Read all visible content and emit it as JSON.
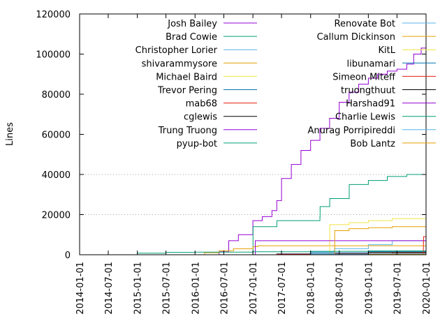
{
  "chart_data": {
    "type": "line",
    "xlabel": "",
    "ylabel": "Lines",
    "ylim": [
      0,
      120000
    ],
    "xlim": [
      "2014-01-01",
      "2020-01-01"
    ],
    "yticks": [
      0,
      20000,
      40000,
      60000,
      80000,
      100000,
      120000
    ],
    "ytick_labels": [
      "0",
      "20000",
      "40000",
      "60000",
      "80000",
      "100000",
      "120000"
    ],
    "xticks": [
      "2014-01-01",
      "2014-07-01",
      "2015-01-01",
      "2015-07-01",
      "2016-01-01",
      "2016-07-01",
      "2017-01-01",
      "2017-07-01",
      "2018-01-01",
      "2018-07-01",
      "2019-01-01",
      "2019-07-01",
      "2020-01-01"
    ],
    "grid": "horizontal dotted at 20000, 40000",
    "legend_placement": "top, two columns",
    "series": [
      {
        "name": "Josh Bailey",
        "color": "#9400d3",
        "x": [
          "2014-01-01",
          "2016-04-01",
          "2016-06-01",
          "2016-08-01",
          "2016-10-01",
          "2017-01-01",
          "2017-03-01",
          "2017-05-01",
          "2017-06-01",
          "2017-07-01",
          "2017-09-01",
          "2017-11-01",
          "2018-01-01",
          "2018-03-01",
          "2018-05-01",
          "2018-07-01",
          "2018-09-01",
          "2018-11-01",
          "2019-01-01",
          "2019-03-01",
          "2019-05-01",
          "2019-07-01",
          "2019-09-01",
          "2019-10-15",
          "2019-12-01",
          "2020-01-01"
        ],
        "values": [
          0,
          0,
          1500,
          7000,
          10000,
          17000,
          19000,
          22000,
          27000,
          38000,
          45000,
          52000,
          57000,
          63000,
          68000,
          76000,
          81000,
          85000,
          88000,
          90000,
          91500,
          92500,
          95000,
          100000,
          103000,
          104000
        ]
      },
      {
        "name": "Brad Cowie",
        "color": "#009e73",
        "x": [
          "2014-01-01",
          "2016-06-01",
          "2017-01-01",
          "2017-01-02",
          "2017-06-01",
          "2017-06-02",
          "2018-03-01",
          "2018-03-02",
          "2018-05-01",
          "2018-05-02",
          "2018-09-01",
          "2018-09-02",
          "2019-01-01",
          "2019-05-01",
          "2019-09-01",
          "2020-01-01"
        ],
        "values": [
          0,
          0,
          1000,
          14000,
          14000,
          17000,
          19000,
          24000,
          24000,
          28000,
          28000,
          35000,
          37000,
          39000,
          40000,
          42000
        ]
      },
      {
        "name": "Christopher Lorier",
        "color": "#56b4e9",
        "x": [
          "2014-01-01",
          "2017-06-01",
          "2018-01-01",
          "2018-06-01",
          "2019-01-01",
          "2019-06-01",
          "2020-01-01"
        ],
        "values": [
          0,
          0,
          1500,
          3000,
          5000,
          7000,
          8000
        ]
      },
      {
        "name": "shivarammysore",
        "color": "#e69f00",
        "x": [
          "2014-01-01",
          "2016-01-01",
          "2016-03-01",
          "2016-06-01",
          "2016-09-01",
          "2017-01-01",
          "2017-02-01",
          "2020-01-01"
        ],
        "values": [
          0,
          0,
          1000,
          2000,
          3000,
          4000,
          4500,
          4500
        ]
      },
      {
        "name": "Michael Baird",
        "color": "#f0e442",
        "x": [
          "2014-01-01",
          "2018-05-01",
          "2018-05-02",
          "2018-09-01",
          "2019-01-01",
          "2019-06-01",
          "2020-01-01"
        ],
        "values": [
          0,
          0,
          15000,
          16000,
          17000,
          18000,
          18500
        ]
      },
      {
        "name": "Trevor Pering",
        "color": "#0072b2",
        "x": [
          "2014-01-01",
          "2016-09-01",
          "2017-06-01",
          "2018-01-01",
          "2019-01-01",
          "2020-01-01"
        ],
        "values": [
          0,
          0,
          500,
          1000,
          1500,
          2000
        ]
      },
      {
        "name": "mab68",
        "color": "#e51e10",
        "x": [
          "2014-01-01",
          "2016-06-01",
          "2017-06-01",
          "2018-06-01",
          "2019-06-01",
          "2020-01-01"
        ],
        "values": [
          0,
          0,
          300,
          600,
          1000,
          1500
        ]
      },
      {
        "name": "cglewis",
        "color": "#000000",
        "x": [
          "2014-01-01",
          "2017-01-01",
          "2018-01-01",
          "2019-01-01",
          "2020-01-01"
        ],
        "values": [
          0,
          0,
          400,
          1200,
          1800
        ]
      },
      {
        "name": "Trung Truong",
        "color": "#9400d3",
        "x": [
          "2014-01-01",
          "2017-01-15",
          "2017-01-16",
          "2020-01-01"
        ],
        "values": [
          0,
          0,
          7000,
          7500
        ]
      },
      {
        "name": "pyup-bot",
        "color": "#009e73",
        "x": [
          "2014-01-01",
          "2017-01-01",
          "2018-01-01",
          "2019-01-01",
          "2020-01-01"
        ],
        "values": [
          0,
          0,
          200,
          400,
          600
        ]
      },
      {
        "name": "Renovate Bot",
        "color": "#56b4e9",
        "x": [
          "2014-01-01",
          "2019-01-01",
          "2020-01-01"
        ],
        "values": [
          0,
          0,
          300
        ]
      },
      {
        "name": "Callum Dickinson",
        "color": "#e69f00",
        "x": [
          "2014-01-01",
          "2018-06-01",
          "2018-06-02",
          "2018-09-01",
          "2019-01-01",
          "2019-06-01",
          "2020-01-01"
        ],
        "values": [
          0,
          0,
          12000,
          13000,
          13500,
          14000,
          14500
        ]
      },
      {
        "name": "KitL",
        "color": "#f0e442",
        "x": [
          "2014-01-01",
          "2019-01-01",
          "2020-01-01"
        ],
        "values": [
          0,
          0,
          300
        ]
      },
      {
        "name": "libunamari",
        "color": "#0072b2",
        "x": [
          "2014-01-01",
          "2019-06-01",
          "2020-01-01"
        ],
        "values": [
          0,
          0,
          200
        ]
      },
      {
        "name": "Simeon Miteff",
        "color": "#e51e10",
        "x": [
          "2014-01-01",
          "2019-10-01",
          "2019-12-15",
          "2019-12-16",
          "2020-01-01"
        ],
        "values": [
          0,
          0,
          6000,
          9000,
          10500
        ]
      },
      {
        "name": "truongthuut",
        "color": "#000000",
        "x": [
          "2014-01-01",
          "2018-06-01",
          "2019-01-01",
          "2020-01-01"
        ],
        "values": [
          0,
          0,
          500,
          700
        ]
      },
      {
        "name": "Harshad91",
        "color": "#9400d3",
        "x": [
          "2014-01-01",
          "2019-01-01",
          "2020-01-01"
        ],
        "values": [
          0,
          0,
          200
        ]
      },
      {
        "name": "Charlie Lewis",
        "color": "#009e73",
        "x": [
          "2014-01-01",
          "2014-04-01",
          "2015-01-01",
          "2015-07-01",
          "2016-01-01",
          "2017-01-01",
          "2018-01-01",
          "2019-01-01",
          "2020-01-01"
        ],
        "values": [
          0,
          0,
          800,
          1200,
          1300,
          1500,
          1700,
          1900,
          2000
        ]
      },
      {
        "name": "Anurag Porripireddi",
        "color": "#56b4e9",
        "x": [
          "2014-01-01",
          "2017-06-01",
          "2018-01-01",
          "2019-01-01",
          "2020-01-01"
        ],
        "values": [
          0,
          0,
          300,
          500,
          600
        ]
      },
      {
        "name": "Bob Lantz",
        "color": "#e69f00",
        "x": [
          "2014-01-01",
          "2018-07-01",
          "2019-01-01",
          "2020-01-01"
        ],
        "values": [
          0,
          0,
          200,
          300
        ]
      }
    ]
  }
}
